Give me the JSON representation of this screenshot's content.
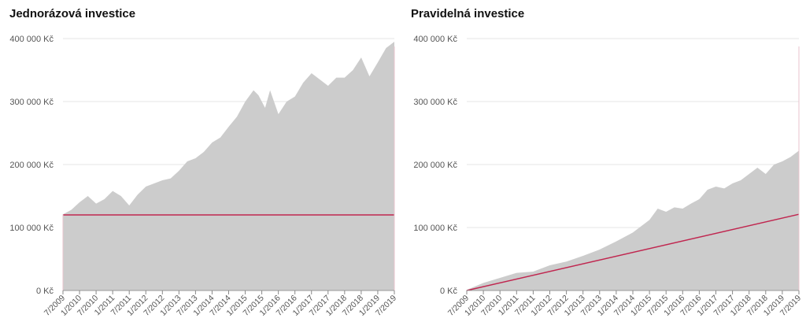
{
  "colors": {
    "area": "#cccccc",
    "invested_line": "#c0264f",
    "grid": "#e6e6e6",
    "axis_text": "#555555"
  },
  "chart_data": [
    {
      "type": "area",
      "title": "Jednorázová investice",
      "ylim": [
        0,
        400000
      ],
      "y_ticks": [
        0,
        100000,
        200000,
        300000,
        400000
      ],
      "y_tick_labels": [
        "0 Kč",
        "100 000 Kč",
        "200 000 Kč",
        "300 000 Kč",
        "400 000 Kč"
      ],
      "x_range": [
        2009.5,
        2019.5
      ],
      "x_ticks": [
        2009.5,
        2010.0,
        2010.5,
        2011.0,
        2011.5,
        2012.0,
        2012.5,
        2013.0,
        2013.5,
        2014.0,
        2014.5,
        2015.0,
        2015.5,
        2016.0,
        2016.5,
        2017.0,
        2017.5,
        2018.0,
        2018.5,
        2019.0,
        2019.5
      ],
      "x_tick_labels": [
        "7/2009",
        "1/2010",
        "7/2010",
        "1/2011",
        "7/2011",
        "1/2012",
        "7/2012",
        "1/2013",
        "7/2013",
        "1/2014",
        "7/2014",
        "1/2015",
        "7/2015",
        "1/2016",
        "7/2016",
        "1/2017",
        "7/2017",
        "1/2018",
        "7/2018",
        "1/2019",
        "7/2019"
      ],
      "grid": true,
      "series": [
        {
          "kind": "area",
          "x": [
            2009.5,
            2009.75,
            2010.0,
            2010.25,
            2010.5,
            2010.75,
            2011.0,
            2011.25,
            2011.5,
            2011.75,
            2012.0,
            2012.25,
            2012.5,
            2012.75,
            2013.0,
            2013.25,
            2013.5,
            2013.75,
            2014.0,
            2014.25,
            2014.5,
            2014.75,
            2015.0,
            2015.25,
            2015.4,
            2015.6,
            2015.75,
            2016.0,
            2016.25,
            2016.5,
            2016.75,
            2017.0,
            2017.25,
            2017.5,
            2017.75,
            2018.0,
            2018.25,
            2018.5,
            2018.75,
            2019.0,
            2019.25,
            2019.5
          ],
          "values": [
            121000,
            128000,
            140000,
            150000,
            138000,
            145000,
            158000,
            150000,
            135000,
            152000,
            165000,
            170000,
            175000,
            178000,
            190000,
            205000,
            210000,
            220000,
            235000,
            243000,
            260000,
            276000,
            300000,
            318000,
            310000,
            290000,
            318000,
            280000,
            300000,
            308000,
            330000,
            345000,
            335000,
            325000,
            338000,
            338000,
            350000,
            370000,
            340000,
            362000,
            385000,
            395000
          ]
        },
        {
          "kind": "line",
          "x": [
            2009.5,
            2019.5
          ],
          "values": [
            120000,
            120000
          ]
        }
      ]
    },
    {
      "type": "area",
      "title": "Pravidelná investice",
      "ylim": [
        0,
        400000
      ],
      "y_ticks": [
        0,
        100000,
        200000,
        300000,
        400000
      ],
      "y_tick_labels": [
        "0 Kč",
        "100 000 Kč",
        "200 000 Kč",
        "300 000 Kč",
        "400 000 Kč"
      ],
      "x_range": [
        2009.5,
        2019.5
      ],
      "x_ticks": [
        2009.5,
        2010.0,
        2010.5,
        2011.0,
        2011.5,
        2012.0,
        2012.5,
        2013.0,
        2013.5,
        2014.0,
        2014.5,
        2015.0,
        2015.5,
        2016.0,
        2016.5,
        2017.0,
        2017.5,
        2018.0,
        2018.5,
        2019.0,
        2019.5
      ],
      "x_tick_labels": [
        "7/2009",
        "1/2010",
        "7/2010",
        "1/2011",
        "7/2011",
        "1/2012",
        "7/2012",
        "1/2013",
        "7/2013",
        "1/2014",
        "7/2014",
        "1/2015",
        "7/2015",
        "1/2016",
        "7/2016",
        "1/2017",
        "7/2017",
        "1/2018",
        "7/2018",
        "1/2019",
        "7/2019"
      ],
      "grid": true,
      "series": [
        {
          "kind": "area",
          "x": [
            2009.5,
            2010.0,
            2010.5,
            2011.0,
            2011.5,
            2012.0,
            2012.5,
            2013.0,
            2013.5,
            2014.0,
            2014.5,
            2015.0,
            2015.25,
            2015.5,
            2015.75,
            2016.0,
            2016.25,
            2016.5,
            2016.75,
            2017.0,
            2017.25,
            2017.5,
            2017.75,
            2018.0,
            2018.25,
            2018.5,
            2018.75,
            2019.0,
            2019.25,
            2019.5
          ],
          "values": [
            1000,
            12000,
            20000,
            28000,
            30000,
            40000,
            46000,
            55000,
            65000,
            78000,
            92000,
            112000,
            130000,
            125000,
            132000,
            130000,
            138000,
            145000,
            160000,
            165000,
            162000,
            170000,
            175000,
            185000,
            195000,
            185000,
            200000,
            205000,
            212000,
            222000
          ]
        },
        {
          "kind": "line",
          "x": [
            2009.5,
            2019.5
          ],
          "values": [
            0,
            121000
          ]
        }
      ]
    }
  ]
}
